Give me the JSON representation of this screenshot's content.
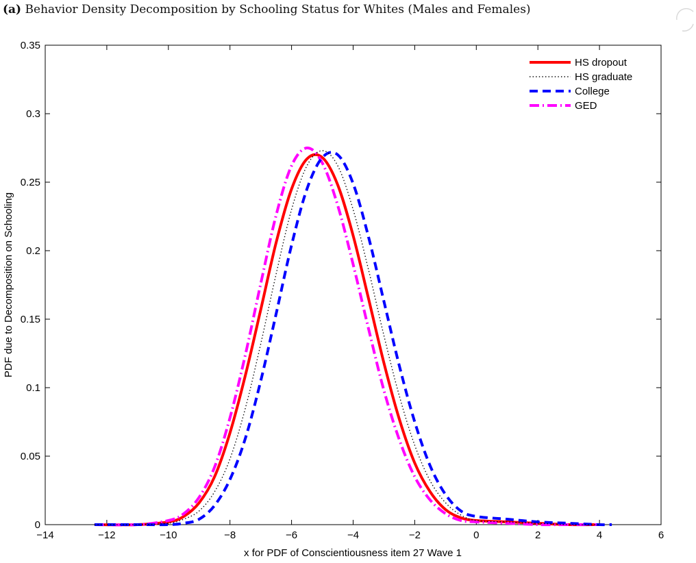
{
  "caption": {
    "tag": "(a)",
    "text": "Behavior Density Decomposition by Schooling Status for Whites (Males and Females)"
  },
  "chart_data": {
    "type": "line",
    "title": "",
    "xlabel": "x for PDF of Conscientiousness item 27  Wave 1",
    "ylabel": "PDF due to Decomposition on Schooling",
    "xlim": [
      -14,
      6
    ],
    "ylim": [
      0,
      0.35
    ],
    "xticks": [
      -14,
      -12,
      -10,
      -8,
      -6,
      -4,
      -2,
      0,
      2,
      4,
      6
    ],
    "yticks": [
      0,
      0.05,
      0.1,
      0.15,
      0.2,
      0.25,
      0.3,
      0.35
    ],
    "xtick_labels": [
      "−14",
      "−12",
      "−10",
      "−8",
      "−6",
      "−4",
      "−2",
      "0",
      "2",
      "4",
      "6"
    ],
    "ytick_labels": [
      "0",
      "0.05",
      "0.1",
      "0.15",
      "0.2",
      "0.25",
      "0.3",
      "0.35"
    ],
    "grid": false,
    "legend_position": "top-right",
    "series": [
      {
        "name": "HS dropout",
        "color": "#ff0000",
        "style": "solid",
        "x": [
          -12.4,
          -11,
          -10,
          -9.5,
          -9,
          -8.5,
          -8,
          -7.5,
          -7,
          -6.5,
          -6,
          -5.5,
          -5,
          -4.5,
          -4,
          -3.5,
          -3,
          -2.5,
          -2,
          -1.5,
          -1,
          -0.5,
          0,
          1,
          2,
          3,
          4
        ],
        "y": [
          0.0,
          0.0,
          0.002,
          0.006,
          0.016,
          0.035,
          0.067,
          0.109,
          0.157,
          0.206,
          0.245,
          0.267,
          0.268,
          0.248,
          0.211,
          0.165,
          0.118,
          0.077,
          0.045,
          0.024,
          0.011,
          0.005,
          0.003,
          0.002,
          0.001,
          0.0,
          0.0
        ]
      },
      {
        "name": "HS graduate",
        "color": "#000000",
        "style": "dotted",
        "x": [
          -12.4,
          -11,
          -10,
          -9.5,
          -9,
          -8.5,
          -8,
          -7.5,
          -7,
          -6.5,
          -6,
          -5.5,
          -5,
          -4.5,
          -4,
          -3.5,
          -3,
          -2.5,
          -2,
          -1.5,
          -1,
          -0.5,
          0,
          1,
          2,
          3,
          4
        ],
        "y": [
          0.0,
          0.0,
          0.001,
          0.004,
          0.01,
          0.024,
          0.048,
          0.085,
          0.132,
          0.183,
          0.23,
          0.262,
          0.273,
          0.262,
          0.23,
          0.186,
          0.138,
          0.094,
          0.058,
          0.032,
          0.016,
          0.007,
          0.003,
          0.002,
          0.001,
          0.0,
          0.0
        ]
      },
      {
        "name": "College",
        "color": "#0000ff",
        "style": "dashed",
        "x": [
          -12.4,
          -11,
          -10,
          -9.5,
          -9,
          -8.5,
          -8,
          -7.5,
          -7,
          -6.5,
          -6,
          -5.5,
          -5,
          -4.5,
          -4,
          -3.5,
          -3,
          -2.5,
          -2,
          -1.5,
          -1,
          -0.5,
          0,
          1,
          2,
          3,
          4,
          4.4
        ],
        "y": [
          0.0,
          0.0,
          0.0,
          0.001,
          0.004,
          0.014,
          0.033,
          0.063,
          0.105,
          0.154,
          0.204,
          0.245,
          0.268,
          0.27,
          0.249,
          0.21,
          0.163,
          0.116,
          0.075,
          0.043,
          0.022,
          0.01,
          0.006,
          0.004,
          0.002,
          0.001,
          0.0,
          0.0
        ]
      },
      {
        "name": "GED",
        "color": "#ff00ff",
        "style": "dashdot",
        "x": [
          -12.4,
          -11,
          -10,
          -9.5,
          -9,
          -8.5,
          -8,
          -7.5,
          -7,
          -6.5,
          -6,
          -5.5,
          -5,
          -4.5,
          -4,
          -3.5,
          -3,
          -2.5,
          -2,
          -1.5,
          -1,
          -0.5,
          0,
          1,
          2,
          3,
          4
        ],
        "y": [
          0.0,
          0.0,
          0.003,
          0.008,
          0.02,
          0.042,
          0.078,
          0.124,
          0.176,
          0.226,
          0.262,
          0.275,
          0.264,
          0.233,
          0.19,
          0.143,
          0.098,
          0.062,
          0.035,
          0.018,
          0.008,
          0.003,
          0.002,
          0.001,
          0.0,
          0.0,
          0.0
        ]
      }
    ]
  }
}
